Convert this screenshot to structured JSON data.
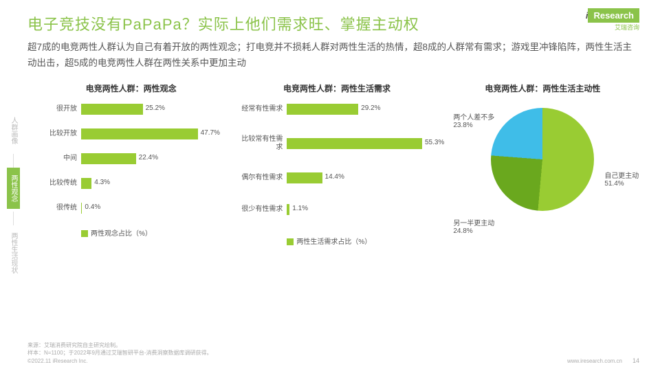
{
  "header": {
    "title": "电子竞技没有PaPaPa？实际上他们需求旺、掌握主动权",
    "subtitle": "超7成的电竞两性人群认为自己有着开放的两性观念；打电竞并不损耗人群对两性生活的热情，超8成的人群常有需求；游戏里冲锋陷阵，两性生活主动出击，超5成的电竞两性人群在两性关系中更加主动",
    "logo_text": "Research",
    "logo_prefix": "i",
    "logo_sub": "艾瑞咨询"
  },
  "sidebar": {
    "items": [
      "人群画像",
      "两性观念",
      "两性生活现状"
    ],
    "active_index": 1
  },
  "chart1": {
    "type": "bar",
    "title": "电竞两性人群：两性观念",
    "categories": [
      "很开放",
      "比较开放",
      "中间",
      "比较传统",
      "很传统"
    ],
    "values": [
      25.2,
      47.7,
      22.4,
      4.3,
      0.4
    ],
    "bar_color": "#99cc33",
    "max_scale": 60,
    "legend": "两性观念占比（%）",
    "label_fontsize": 10
  },
  "chart2": {
    "type": "bar",
    "title": "电竞两性人群：两性生活需求",
    "categories": [
      "经常有性需求",
      "比较常有性需求",
      "偶尔有性需求",
      "很少有性需求"
    ],
    "values": [
      29.2,
      55.3,
      14.4,
      1.1
    ],
    "bar_color": "#99cc33",
    "max_scale": 60,
    "legend": "两性生活需求占比（%）",
    "label_fontsize": 10
  },
  "chart3": {
    "type": "pie",
    "title": "电竞两性人群：两性生活主动性",
    "slices": [
      {
        "label": "自己更主动",
        "value": 51.4,
        "color": "#99cc33"
      },
      {
        "label": "另一半更主动",
        "value": 24.8,
        "color": "#6aa81e"
      },
      {
        "label": "两个人差不多",
        "value": 23.8,
        "color": "#3fbde8"
      }
    ],
    "label_fontsize": 10
  },
  "footer": {
    "source1": "来源：艾瑞消费研究院自主研究绘制。",
    "source2": "样本：N=1100；于2022年9月通过艾瑞智研平台-消费洞察数据库调研获得。",
    "copyright": "©2022.11 iResearch Inc.",
    "url": "www.iresearch.com.cn",
    "page": "14"
  },
  "colors": {
    "accent": "#8bc34a",
    "bar": "#99cc33",
    "text": "#555555",
    "background": "#ffffff"
  }
}
